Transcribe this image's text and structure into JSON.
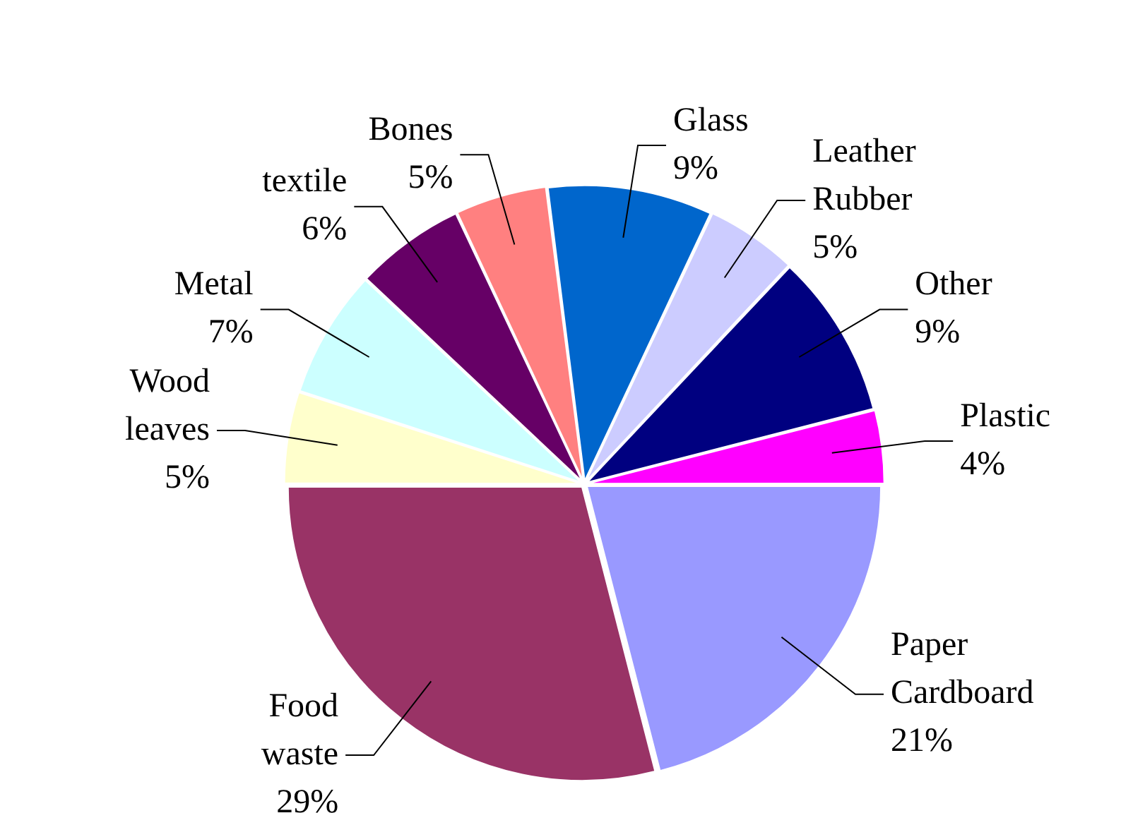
{
  "chart_data": {
    "type": "pie",
    "categories": [
      "Paper Cardboard",
      "Food waste",
      "Wood leaves",
      "Metal",
      "textile",
      "Bones",
      "Glass",
      "Leather Rubber",
      "Other",
      "Plastic"
    ],
    "values": [
      21,
      29,
      5,
      7,
      6,
      5,
      9,
      5,
      9,
      4
    ],
    "value_labels": [
      "21%",
      "29%",
      "5%",
      "7%",
      "6%",
      "5%",
      "9%",
      "5%",
      "9%",
      "4%"
    ],
    "colors": [
      "#9999ff",
      "#993366",
      "#ffffcc",
      "#ccffff",
      "#660066",
      "#ff8080",
      "#0066cc",
      "#ccccff",
      "#000080",
      "#ff00ff"
    ],
    "legend": false
  }
}
